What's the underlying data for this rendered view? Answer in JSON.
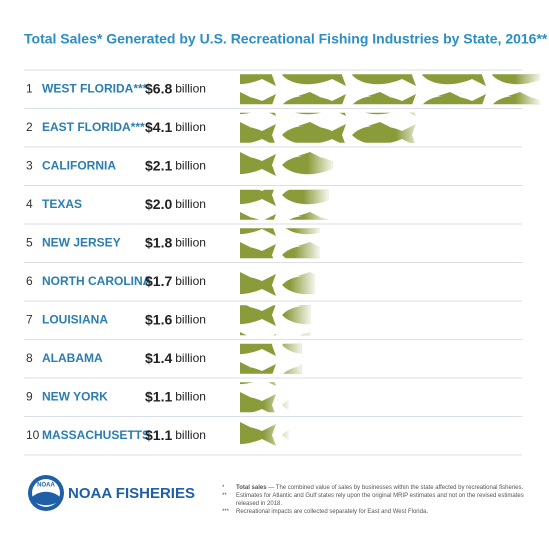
{
  "chart_data": {
    "type": "pictogram",
    "title": "Total Sales* Generated by U.S. Recreational Fishing Industries by State, 2016**",
    "ranks": [
      "1",
      "2",
      "3",
      "4",
      "5",
      "6",
      "7",
      "8",
      "9",
      "10"
    ],
    "categories": [
      "WEST FLORIDA***",
      "EAST FLORIDA***",
      "CALIFORNIA",
      "TEXAS",
      "NEW JERSEY",
      "NORTH CAROLINA",
      "LOUISIANA",
      "ALABAMA",
      "NEW YORK",
      "MASSACHUSETTS"
    ],
    "values": [
      6.8,
      4.1,
      2.1,
      2.0,
      1.8,
      1.7,
      1.6,
      1.4,
      1.1,
      1.1
    ],
    "value_labels": [
      "$6.8",
      "$4.1",
      "$2.1",
      "$2.0",
      "$1.8",
      "$1.7",
      "$1.6",
      "$1.4",
      "$1.1",
      "$1.1"
    ],
    "unit_label": "billion",
    "color": "#8a9b3a"
  },
  "footer": {
    "logo": "NOAA",
    "brand": "NOAA FISHERIES",
    "notes": [
      {
        "mark": "*",
        "term": "Total sales",
        "text": " — The combined value of sales by businesses within the state affected by recreational fisheries."
      },
      {
        "mark": "**",
        "text": "Estimates for Atlantic and Gulf states rely upon the original MRIP estimates and not on the revised estimates released in 2018."
      },
      {
        "mark": "***",
        "text": "Recreational impacts are collected separately for East and West Florida."
      }
    ]
  }
}
